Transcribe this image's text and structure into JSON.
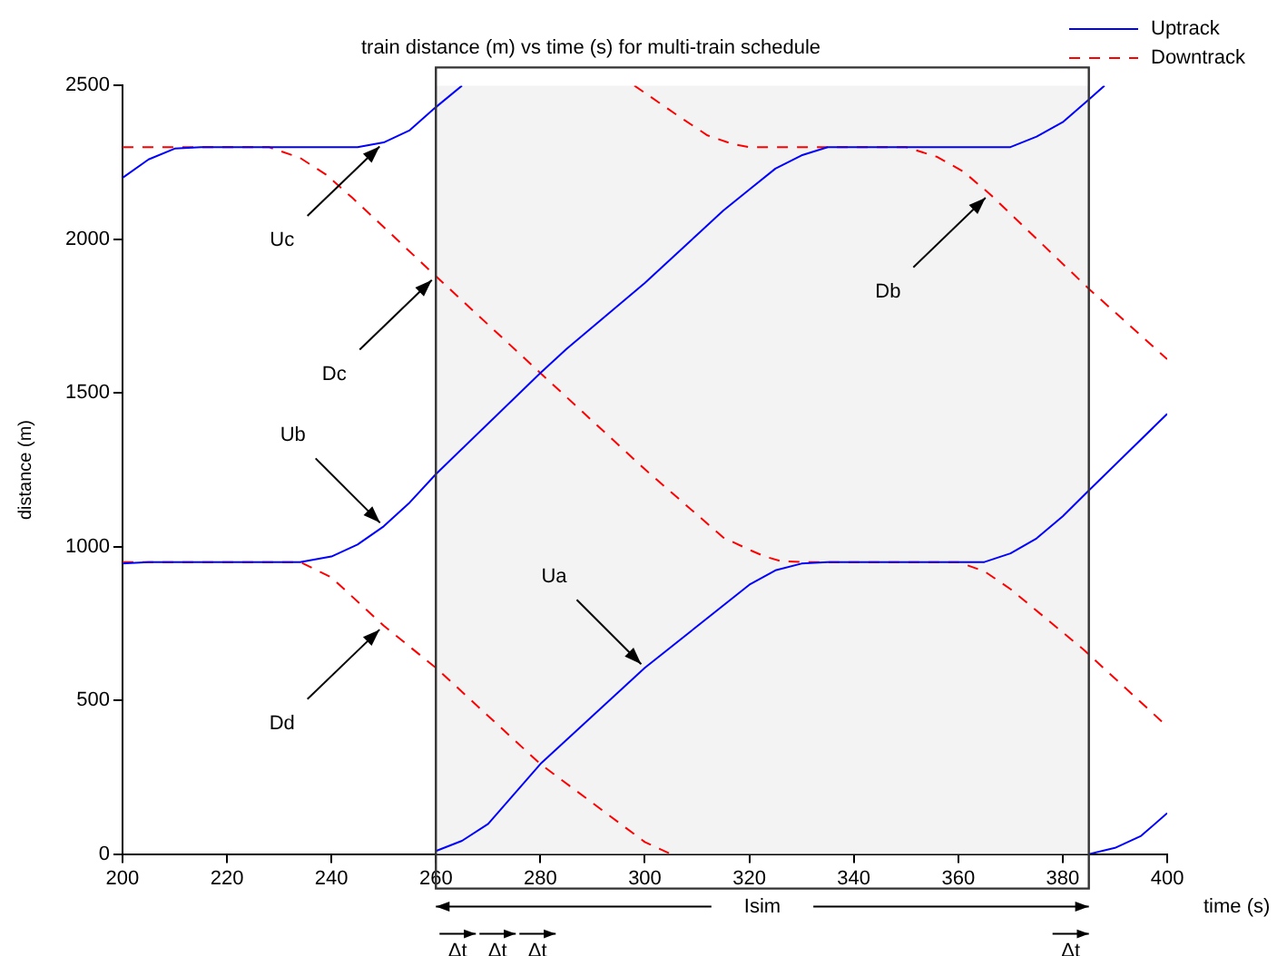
{
  "chart_data": {
    "type": "line",
    "title": "train distance (m) vs time (s) for multi-train schedule",
    "xlabel": "time (s)",
    "ylabel": "distance (m)",
    "xlim": [
      200,
      400
    ],
    "xticks": [
      200,
      220,
      240,
      260,
      280,
      300,
      320,
      340,
      360,
      380,
      400
    ],
    "ylim": [
      0,
      2500
    ],
    "yticks": [
      0,
      500,
      1000,
      1500,
      2000,
      2500
    ],
    "grid": false,
    "legend": "top right",
    "marker": "none",
    "series": [
      {
        "name": "Uptrack",
        "color": "#0000ff",
        "line_style": "solid",
        "x": [
          200,
          205,
          210,
          215,
          245,
          250,
          255,
          260,
          265
        ],
        "values": [
          2200,
          2260,
          2295,
          2300,
          2300,
          2315,
          2355,
          2430,
          2500
        ]
      },
      {
        "color": "#0000ff",
        "line_style": "solid",
        "x": [
          200,
          205,
          234,
          240,
          245,
          250,
          255,
          260,
          280,
          285,
          300,
          315,
          320,
          325,
          330,
          335,
          370,
          375,
          380,
          385,
          388
        ],
        "values": [
          945,
          950,
          950,
          968,
          1007,
          1066,
          1144,
          1236,
          1565,
          1643,
          1858,
          2093,
          2162,
          2230,
          2273,
          2300,
          2300,
          2334,
          2381,
          2455,
          2500
        ]
      },
      {
        "color": "#0000ff",
        "line_style": "solid",
        "x": [
          260,
          265,
          270,
          280,
          300,
          320,
          325,
          330,
          335,
          365,
          370,
          375,
          380,
          385,
          400
        ],
        "values": [
          10,
          43,
          98,
          293,
          606,
          876,
          923,
          945,
          950,
          950,
          978,
          1027,
          1099,
          1183,
          1432
        ]
      },
      {
        "color": "#0000ff",
        "line_style": "solid",
        "x": [
          385,
          390,
          395,
          400
        ],
        "values": [
          0,
          20,
          59,
          133
        ]
      },
      {
        "name": "Downtrack",
        "color": "#ff0000",
        "line_style": "dashed",
        "x": [
          200,
          228,
          234,
          239,
          244,
          250,
          260,
          280,
          300,
          315,
          320,
          323,
          326,
          330,
          360,
          365,
          370,
          384,
          400
        ],
        "values": [
          2300,
          2300,
          2265,
          2210,
          2135,
          2040,
          1880,
          1565,
          1252,
          1030,
          990,
          968,
          953,
          950,
          950,
          920,
          862,
          665,
          415
        ]
      },
      {
        "color": "#ff0000",
        "line_style": "dashed",
        "x": [
          200,
          234,
          240,
          250,
          260,
          280,
          300,
          305
        ],
        "values": [
          950,
          950,
          900,
          743,
          606,
          293,
          39,
          0
        ]
      },
      {
        "color": "#ff0000",
        "line_style": "dashed",
        "x": [
          298,
          306,
          312,
          317,
          320,
          350,
          356,
          361,
          366,
          385,
          400
        ],
        "values": [
          2500,
          2406,
          2338,
          2309,
          2300,
          2300,
          2268,
          2220,
          2148,
          1839,
          1610
        ]
      }
    ],
    "bands": [
      {
        "axis": "x",
        "from": 260,
        "to": 385,
        "label": "Isim",
        "color": "#f3f3f3"
      }
    ],
    "annotations": [
      {
        "text": "Uc",
        "x": 250,
        "y": 2315
      },
      {
        "text": "Dc",
        "x": 260,
        "y": 1880
      },
      {
        "text": "Ub",
        "x": 250,
        "y": 1066
      },
      {
        "text": "Dd",
        "x": 250,
        "y": 743
      },
      {
        "text": "Ua",
        "x": 300,
        "y": 606
      },
      {
        "text": "Db",
        "x": 366,
        "y": 2148
      },
      "Δt",
      "Δt",
      "Δt",
      "Δt"
    ]
  }
}
